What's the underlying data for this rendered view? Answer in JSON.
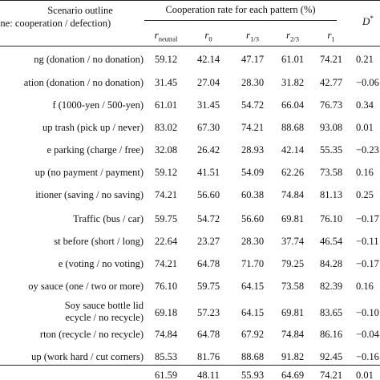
{
  "header": {
    "scenario_line1": "Scenario outline",
    "scenario_line2": "tline: cooperation / defection)",
    "group_title": "Cooperation rate for each pattern (%)",
    "d_label": "D",
    "d_sup": "*"
  },
  "columns": [
    {
      "base": "r",
      "sub": "neutral"
    },
    {
      "base": "r",
      "sub": "0"
    },
    {
      "base": "r",
      "sub": "1/3"
    },
    {
      "base": "r",
      "sub": "2/3"
    },
    {
      "base": "r",
      "sub": "1"
    }
  ],
  "rows": [
    {
      "scenario": "ng (donation / no donation)",
      "lines": [],
      "bold": false,
      "values": [
        "59.12",
        "42.14",
        "47.17",
        "61.01",
        "74.21"
      ],
      "d": "0.21"
    },
    {
      "scenario": "ation (donation / no donation)",
      "lines": [],
      "bold": false,
      "values": [
        "31.45",
        "27.04",
        "28.30",
        "31.82",
        "42.77"
      ],
      "d": "−0.06"
    },
    {
      "scenario": "f (1000-yen / 500-yen)",
      "lines": [],
      "bold": false,
      "values": [
        "61.01",
        "31.45",
        "54.72",
        "66.04",
        "76.73"
      ],
      "d": "0.34"
    },
    {
      "scenario": "up trash (pick up / never)",
      "lines": [],
      "bold": false,
      "values": [
        "83.02",
        "67.30",
        "74.21",
        "88.68",
        "93.08"
      ],
      "d": "0.01"
    },
    {
      "scenario": "e parking (charge / free)",
      "lines": [],
      "bold": false,
      "values": [
        "32.08",
        "26.42",
        "28.93",
        "42.14",
        "55.35"
      ],
      "d": "−0.23"
    },
    {
      "scenario": "up (no payment / payment)",
      "lines": [],
      "bold": false,
      "values": [
        "59.12",
        "41.51",
        "54.09",
        "62.26",
        "73.58"
      ],
      "d": "0.16"
    },
    {
      "scenario": "itioner (saving / no saving)",
      "lines": [],
      "bold": false,
      "values": [
        "74.21",
        "56.60",
        "60.38",
        "74.84",
        "81.13"
      ],
      "d": "0.25"
    },
    {
      "scenario": "Traffic (bus / car)",
      "lines": [],
      "bold": false,
      "values": [
        "59.75",
        "54.72",
        "56.60",
        "69.81",
        "76.10"
      ],
      "d": "−0.17"
    },
    {
      "scenario": "st before (short / long)",
      "lines": [],
      "bold": false,
      "values": [
        "22.64",
        "23.27",
        "28.30",
        "37.74",
        "46.54"
      ],
      "d": "−0.11"
    },
    {
      "scenario": "e (voting / no voting)",
      "lines": [],
      "bold": false,
      "values": [
        "74.21",
        "64.78",
        "71.70",
        "79.25",
        "84.28"
      ],
      "d": "−0.17"
    },
    {
      "scenario": "oy sauce (one / two or more)",
      "lines": [],
      "bold": false,
      "values": [
        "76.10",
        "59.75",
        "64.15",
        "73.58",
        "82.39"
      ],
      "d": "0.16"
    },
    {
      "scenario": "",
      "lines": [
        "Soy sauce bottle lid",
        "ecycle / no recycle)"
      ],
      "bold": false,
      "values": [
        "69.18",
        "57.23",
        "64.15",
        "69.81",
        "83.65"
      ],
      "d": "−0.10"
    },
    {
      "scenario": "rton (recycle / no recycle)",
      "lines": [],
      "bold": false,
      "values": [
        "74.84",
        "64.78",
        "67.92",
        "74.84",
        "86.16"
      ],
      "d": "−0.04"
    },
    {
      "scenario": "up (work hard / cut corners)",
      "lines": [],
      "bold": false,
      "values": [
        "85.53",
        "81.76",
        "88.68",
        "91.82",
        "92.45"
      ],
      "d": "−0.16"
    }
  ],
  "total": {
    "values": [
      "61.59",
      "48.11",
      "55.93",
      "64.69",
      "74.21"
    ],
    "d": "0.01"
  }
}
